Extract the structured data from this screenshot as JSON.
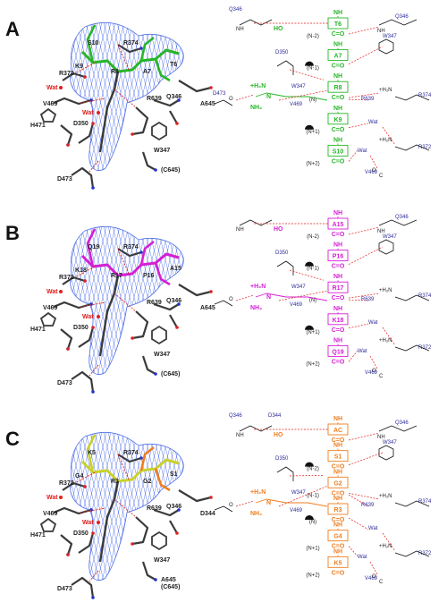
{
  "colors": {
    "panel_A": "#27b527",
    "panel_B": "#d41fd4",
    "panel_C": "#ef7d1f",
    "ligand_C_left": "#c9d22a",
    "mesh": "#4f6fe8",
    "hbond": "#e0201e",
    "protein": "#3a3a3a",
    "receptor_label": "#2b2b9a"
  },
  "panels": [
    {
      "letter": "A",
      "ligand_labels": [
        "S10",
        "K9",
        "R8",
        "A7",
        "T6"
      ],
      "protein_labels": [
        "R374",
        "R372",
        "V469",
        "H471",
        "D350",
        "D473",
        "R639",
        "Q346",
        "W347",
        "A645",
        "(C645)"
      ],
      "water_labels": [
        "Wat",
        "Wat"
      ],
      "schematic": {
        "residues": [
          "T6",
          "A7",
          "R8",
          "K9",
          "S10"
        ],
        "positions": [
          "(N-2)",
          "(N-1)",
          "(N)",
          "(N+1)",
          "(N+2)"
        ],
        "receptor": {
          "Q346_left": "Q346",
          "Q346_right": "Q346",
          "W347_right": "W347",
          "D350": "D350",
          "D473": "D473",
          "W347": "W347",
          "V469": "V469",
          "R639": "R639",
          "R374": "R374",
          "R372": "R372",
          "V469_low": "V469",
          "wat1": "Wat",
          "wat2": "Wat"
        }
      }
    },
    {
      "letter": "B",
      "ligand_labels": [
        "Q19",
        "K18",
        "R17",
        "P16",
        "A15"
      ],
      "protein_labels": [
        "R374",
        "R372",
        "V469",
        "H471",
        "D350",
        "D473",
        "R639",
        "Q346",
        "W347",
        "A645",
        "(C645)"
      ],
      "water_labels": [
        "Wat",
        "Wat"
      ],
      "schematic": {
        "residues": [
          "A15",
          "P16",
          "R17",
          "K18",
          "Q19"
        ],
        "positions": [
          "(N-2)",
          "(N-1)",
          "(N)",
          "(N+1)",
          "(N+2)"
        ],
        "receptor": {
          "Q346_right": "Q346",
          "W347_right": "W347",
          "D350": "D350",
          "W347": "W347",
          "V469": "V469",
          "R639": "R639",
          "R374": "R374",
          "R372": "R372",
          "V469_low": "V469",
          "wat1": "Wat",
          "wat2": "Wat"
        }
      }
    },
    {
      "letter": "C",
      "ligand_labels": [
        "K5",
        "G4",
        "R3",
        "G2",
        "S1"
      ],
      "protein_labels": [
        "R374",
        "R372",
        "V469",
        "H471",
        "D350",
        "D473",
        "R639",
        "Q346",
        "W347",
        "D344",
        "A645",
        "(C645)"
      ],
      "water_labels": [
        "Wat",
        "Wat"
      ],
      "schematic": {
        "residues": [
          "AC",
          "S1",
          "G2",
          "R3",
          "G4",
          "K5"
        ],
        "positions": [
          "(N-2)",
          "(N-1)",
          "(N)",
          "(N+1)",
          "(N+2)"
        ],
        "receptor": {
          "Q346_left": "Q346",
          "D344": "D344",
          "Q346_right": "Q346",
          "W347_right": "W347",
          "D350": "D350",
          "W347": "W347",
          "V469": "V469",
          "R639": "R639",
          "R374": "R374",
          "R372": "R372",
          "V469_low": "V469",
          "wat1": "Wat",
          "wat2": "Wat"
        }
      }
    }
  ],
  "chem": {
    "nh": "NH",
    "co": "C=O",
    "oh": "O",
    "c": "C",
    "nh2": "NH₂",
    "plus_h2n": "+H₂N",
    "n": "N",
    "ho": "HO"
  }
}
